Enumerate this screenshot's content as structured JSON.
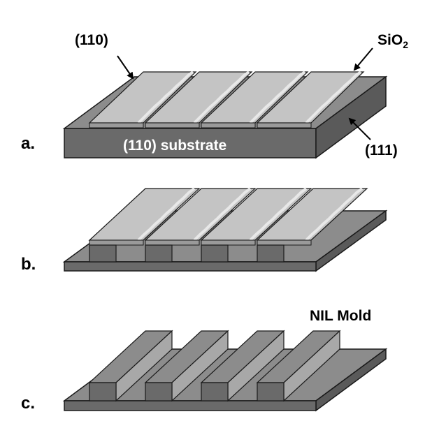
{
  "labels": {
    "panel_a": "a.",
    "panel_b": "b.",
    "panel_c": "c.",
    "top_surface": "(110)",
    "oxide_main": "SiO",
    "oxide_sub": "2",
    "side_face": "(111)",
    "substrate": "(110) substrate",
    "mold": "NIL Mold"
  },
  "colors": {
    "top_gray": "#8c8c8c",
    "front_gray": "#6a6a6a",
    "side_gray": "#5a5a5a",
    "oxide_light": "#c4c4c4",
    "oxide_edge": "#e8e8e8",
    "outline": "#1a1a1a"
  }
}
